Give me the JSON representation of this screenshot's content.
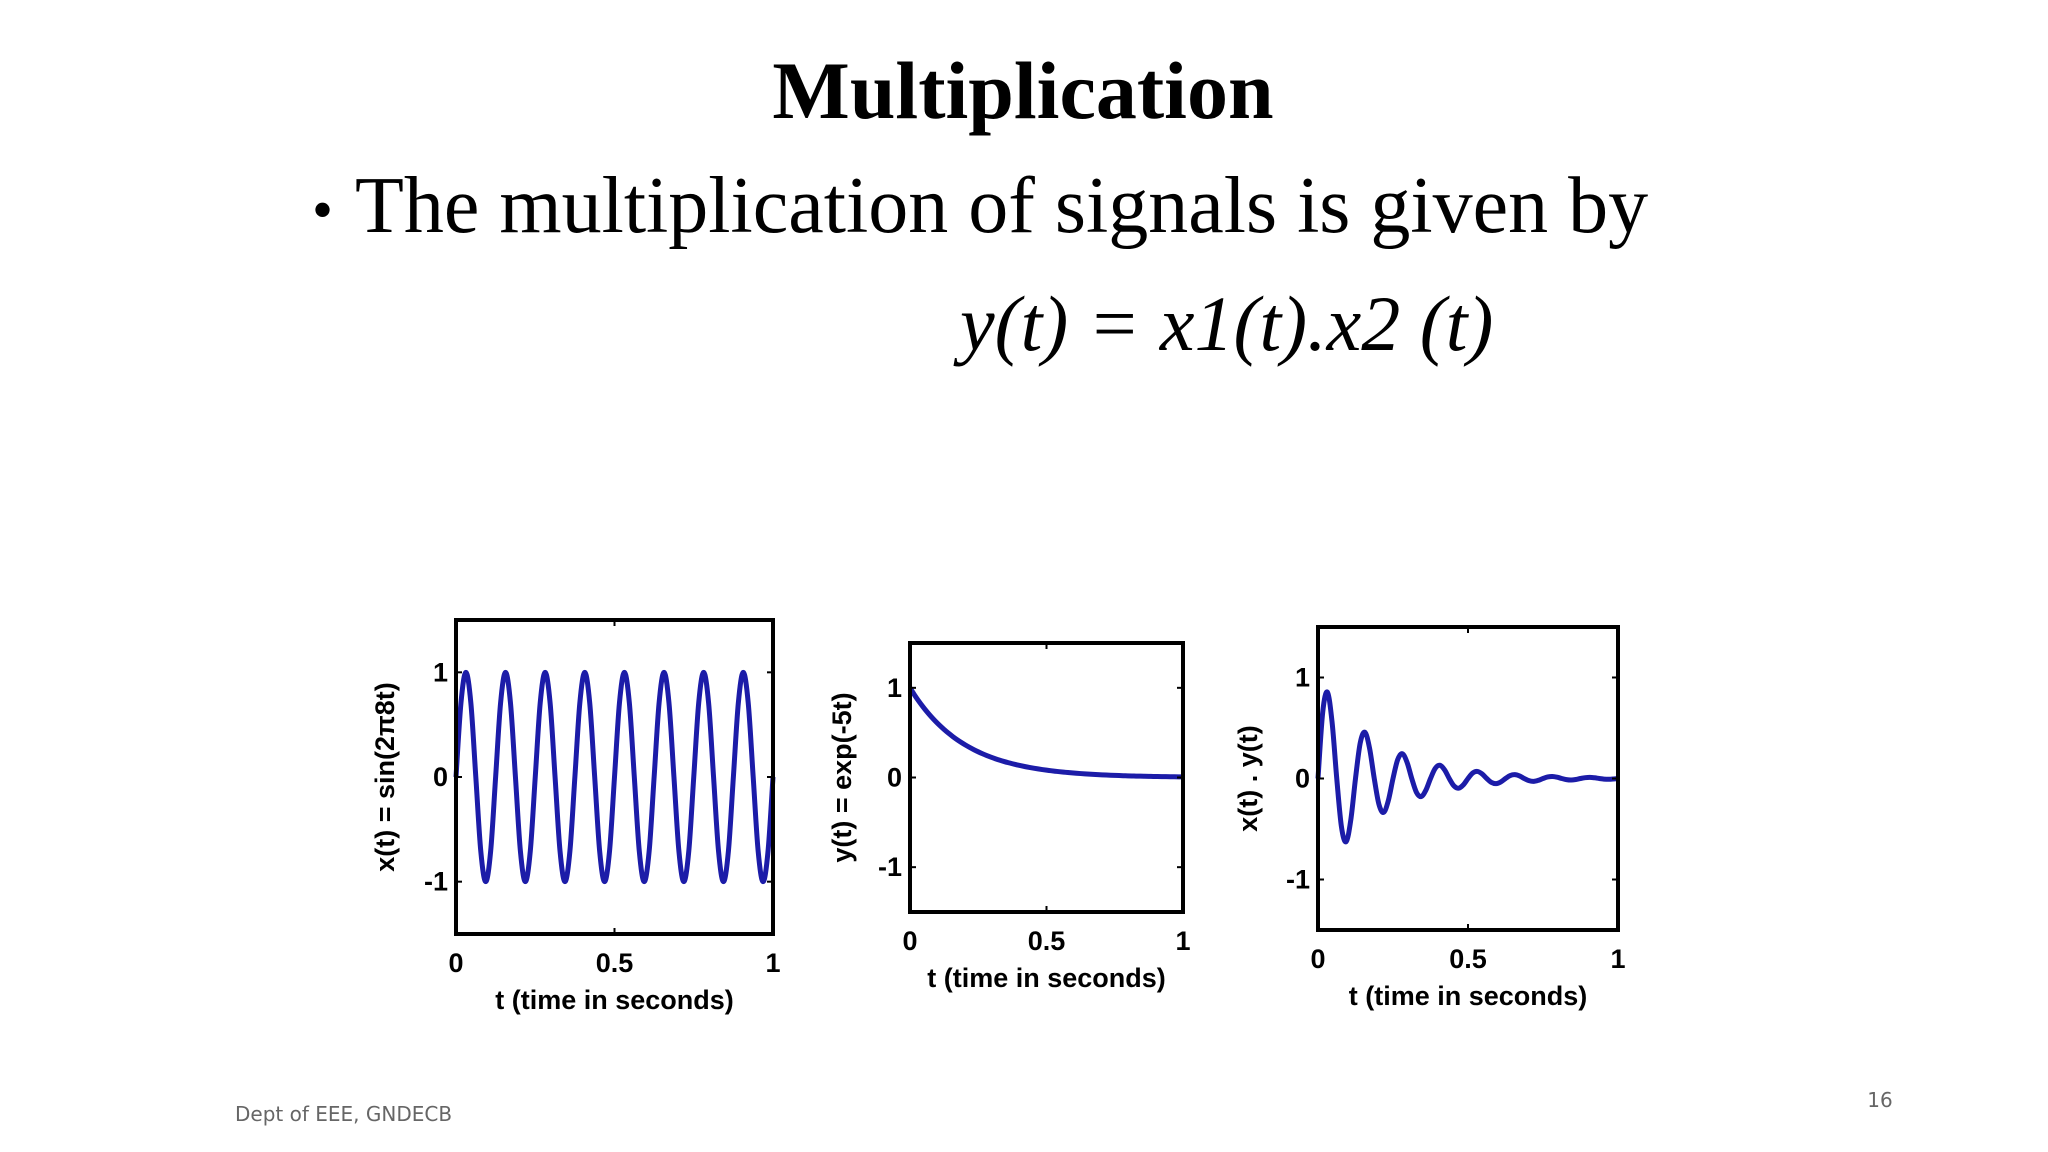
{
  "title": "Multiplication",
  "bullet": "The multiplication of signals is given by",
  "equation": "y(t) = x1(t).x2 (t)",
  "footer": "Dept of EEE, GNDECB",
  "page_number": 16,
  "chart_data": [
    {
      "type": "line",
      "ylabel": "x(t) = sin(2π8t)",
      "xlabel": "t (time in seconds)",
      "color": "#1c1ca8",
      "xlim": [
        0,
        1
      ],
      "ylim": [
        -1.5,
        1.5
      ],
      "xticks": [
        0,
        0.5,
        1
      ],
      "yticks": [
        -1,
        0,
        1
      ],
      "x": [
        0,
        0.015625,
        0.03125,
        0.046875,
        0.0625,
        0.078125,
        0.09375,
        0.109375,
        0.125,
        0.140625,
        0.15625,
        0.171875,
        0.1875,
        0.203125,
        0.21875,
        0.234375,
        0.25,
        0.265625,
        0.28125,
        0.296875,
        0.3125,
        0.328125,
        0.34375,
        0.359375,
        0.375,
        0.390625,
        0.40625,
        0.421875,
        0.4375,
        0.453125,
        0.46875,
        0.484375,
        0.5,
        0.515625,
        0.53125,
        0.546875,
        0.5625,
        0.578125,
        0.59375,
        0.609375,
        0.625,
        0.640625,
        0.65625,
        0.671875,
        0.6875,
        0.703125,
        0.71875,
        0.734375,
        0.75,
        0.765625,
        0.78125,
        0.796875,
        0.8125,
        0.828125,
        0.84375,
        0.859375,
        0.875,
        0.890625,
        0.90625,
        0.921875,
        0.9375,
        0.953125,
        0.96875,
        0.984375,
        1
      ],
      "values": [
        0,
        0.707,
        1,
        0.707,
        0,
        -0.707,
        -1,
        -0.707,
        0,
        0.707,
        1,
        0.707,
        0,
        -0.707,
        -1,
        -0.707,
        0,
        0.707,
        1,
        0.707,
        0,
        -0.707,
        -1,
        -0.707,
        0,
        0.707,
        1,
        0.707,
        0,
        -0.707,
        -1,
        -0.707,
        0,
        0.707,
        1,
        0.707,
        0,
        -0.707,
        -1,
        -0.707,
        0,
        0.707,
        1,
        0.707,
        0,
        -0.707,
        -1,
        -0.707,
        0,
        0.707,
        1,
        0.707,
        0,
        -0.707,
        -1,
        -0.707,
        0,
        0.707,
        1,
        0.707,
        0,
        -0.707,
        -1,
        -0.707,
        0
      ]
    },
    {
      "type": "line",
      "ylabel": "y(t) = exp(-5t)",
      "xlabel": "t (time in seconds)",
      "color": "#1c1ca8",
      "xlim": [
        0,
        1
      ],
      "ylim": [
        -1.5,
        1.5
      ],
      "xticks": [
        0,
        0.5,
        1
      ],
      "yticks": [
        -1,
        0,
        1
      ],
      "x": [
        0,
        0.015625,
        0.03125,
        0.046875,
        0.0625,
        0.078125,
        0.09375,
        0.109375,
        0.125,
        0.140625,
        0.15625,
        0.171875,
        0.1875,
        0.203125,
        0.21875,
        0.234375,
        0.25,
        0.265625,
        0.28125,
        0.296875,
        0.3125,
        0.328125,
        0.34375,
        0.359375,
        0.375,
        0.390625,
        0.40625,
        0.421875,
        0.4375,
        0.453125,
        0.46875,
        0.484375,
        0.5,
        0.515625,
        0.53125,
        0.546875,
        0.5625,
        0.578125,
        0.59375,
        0.609375,
        0.625,
        0.640625,
        0.65625,
        0.671875,
        0.6875,
        0.703125,
        0.71875,
        0.734375,
        0.75,
        0.765625,
        0.78125,
        0.796875,
        0.8125,
        0.828125,
        0.84375,
        0.859375,
        0.875,
        0.890625,
        0.90625,
        0.921875,
        0.9375,
        0.953125,
        0.96875,
        0.984375,
        1
      ],
      "values": [
        1,
        0.9249,
        0.8553,
        0.7911,
        0.7316,
        0.6766,
        0.6258,
        0.5788,
        0.5353,
        0.495,
        0.4578,
        0.4234,
        0.3916,
        0.3622,
        0.335,
        0.3098,
        0.2865,
        0.265,
        0.2451,
        0.2266,
        0.2096,
        0.1939,
        0.1793,
        0.1658,
        0.1534,
        0.1418,
        0.1312,
        0.1213,
        0.1122,
        0.1038,
        0.096,
        0.0888,
        0.0821,
        0.0759,
        0.0702,
        0.0649,
        0.0601,
        0.0555,
        0.0514,
        0.0475,
        0.0439,
        0.0406,
        0.0376,
        0.0348,
        0.0321,
        0.0297,
        0.0275,
        0.0254,
        0.0235,
        0.0218,
        0.0201,
        0.0186,
        0.0172,
        0.0159,
        0.0147,
        0.0136,
        0.0126,
        0.0116,
        0.0108,
        0.01,
        0.0092,
        0.0085,
        0.0079,
        0.0073,
        0.0067
      ]
    },
    {
      "type": "line",
      "ylabel": "x(t) . y(t)",
      "xlabel": "t (time in seconds)",
      "color": "#1c1ca8",
      "xlim": [
        0,
        1
      ],
      "ylim": [
        -1.5,
        1.5
      ],
      "xticks": [
        0,
        0.5,
        1
      ],
      "yticks": [
        -1,
        0,
        1
      ],
      "x": [
        0,
        0.015625,
        0.03125,
        0.046875,
        0.0625,
        0.078125,
        0.09375,
        0.109375,
        0.125,
        0.140625,
        0.15625,
        0.171875,
        0.1875,
        0.203125,
        0.21875,
        0.234375,
        0.25,
        0.265625,
        0.28125,
        0.296875,
        0.3125,
        0.328125,
        0.34375,
        0.359375,
        0.375,
        0.390625,
        0.40625,
        0.421875,
        0.4375,
        0.453125,
        0.46875,
        0.484375,
        0.5,
        0.515625,
        0.53125,
        0.546875,
        0.5625,
        0.578125,
        0.59375,
        0.609375,
        0.625,
        0.640625,
        0.65625,
        0.671875,
        0.6875,
        0.703125,
        0.71875,
        0.734375,
        0.75,
        0.765625,
        0.78125,
        0.796875,
        0.8125,
        0.828125,
        0.84375,
        0.859375,
        0.875,
        0.890625,
        0.90625,
        0.921875,
        0.9375,
        0.953125,
        0.96875,
        0.984375,
        1
      ],
      "values": [
        0,
        0.654,
        0.855,
        0.559,
        0,
        -0.478,
        -0.626,
        -0.409,
        0,
        0.35,
        0.458,
        0.299,
        0,
        -0.256,
        -0.335,
        -0.219,
        0,
        0.187,
        0.245,
        0.16,
        0,
        -0.137,
        -0.179,
        -0.117,
        0,
        0.1,
        0.131,
        0.086,
        0,
        -0.073,
        -0.096,
        -0.063,
        0,
        0.054,
        0.07,
        0.046,
        0,
        -0.039,
        -0.051,
        -0.034,
        0,
        0.029,
        0.038,
        0.025,
        0,
        -0.021,
        -0.028,
        -0.018,
        0,
        0.015,
        0.02,
        0.013,
        0,
        -0.011,
        -0.015,
        -0.01,
        0,
        0.008,
        0.011,
        0.007,
        0,
        -0.006,
        -0.008,
        -0.005,
        0
      ]
    }
  ]
}
